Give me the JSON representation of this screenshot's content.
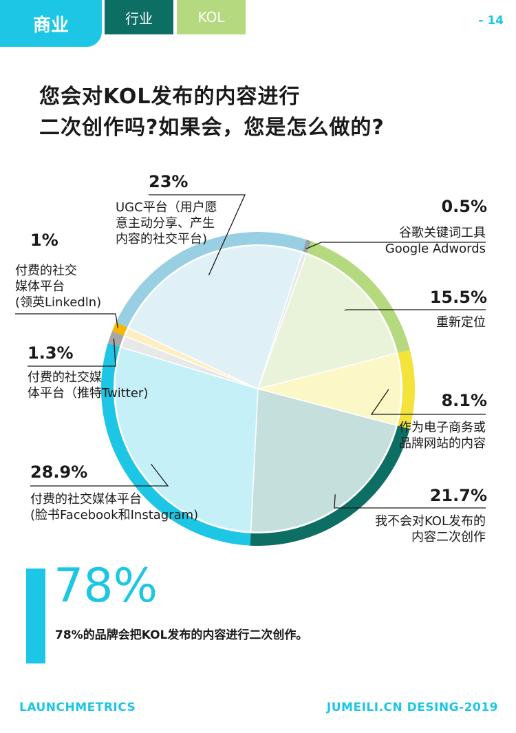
{
  "header": {
    "tabs": [
      {
        "label": "商业",
        "color": "#1cc6e4"
      },
      {
        "label": "行业",
        "color": "#0d6e64"
      },
      {
        "label": "KOL",
        "color": "#b5d97e"
      }
    ],
    "page_number": "- 14"
  },
  "title_lines": [
    "您会对KOL发布的内容进行",
    "二次创作吗?如果会，您是怎么做的?"
  ],
  "chart_data": {
    "type": "pie",
    "unit": "%",
    "slices": [
      {
        "label_lines": [
          "谷歌关键词工具",
          "Google Adwords"
        ],
        "value": 0.5,
        "value_text": "0.5%",
        "color": "#9aa3a8",
        "fill": "#e6eaeb"
      },
      {
        "label_lines": [
          "重新定位"
        ],
        "value": 15.5,
        "value_text": "15.5%",
        "color": "#b5d97e",
        "fill": "#e9f3da"
      },
      {
        "label_lines": [
          "作为电子商务或",
          "品牌网站的内容"
        ],
        "value": 8.1,
        "value_text": "8.1%",
        "color": "#f4e33a",
        "fill": "#fcf7c6"
      },
      {
        "label_lines": [
          "我不会对KOL发布的",
          "内容二次创作"
        ],
        "value": 21.7,
        "value_text": "21.7%",
        "color": "#0d6e64",
        "fill": "#c4dfdc"
      },
      {
        "label_lines": [
          "付费的社交媒体平台",
          "(脸书Facebook和Instagram)"
        ],
        "value": 28.9,
        "value_text": "28.9%",
        "color": "#1cc6e4",
        "fill": "#c6f0f8"
      },
      {
        "label_lines": [
          "付费的社交媒",
          "体平台（推特Twitter)"
        ],
        "value": 1.3,
        "value_text": "1.3%",
        "color": "#a6a6a6",
        "fill": "#e8e8e8"
      },
      {
        "label_lines": [
          "付费的社交",
          "媒体平台",
          "(领英Linkedln)"
        ],
        "value": 1.0,
        "value_text": "1%",
        "color": "#f5b800",
        "fill": "#fdefc2"
      },
      {
        "label_lines": [
          "UGC平台（用户愿",
          "意主动分享、产生",
          "内容的社交平台)"
        ],
        "value": 23.0,
        "value_text": "23%",
        "color": "#98cfe3",
        "fill": "#dff0f6"
      }
    ]
  },
  "highlight": {
    "big_number": "78%",
    "caption": "78%的品牌会把KOL发布的内容进行二次创作。"
  },
  "footer": {
    "left": "LAUNCHMETRICS",
    "right": "JUMEILI.CN DESING-2019"
  }
}
